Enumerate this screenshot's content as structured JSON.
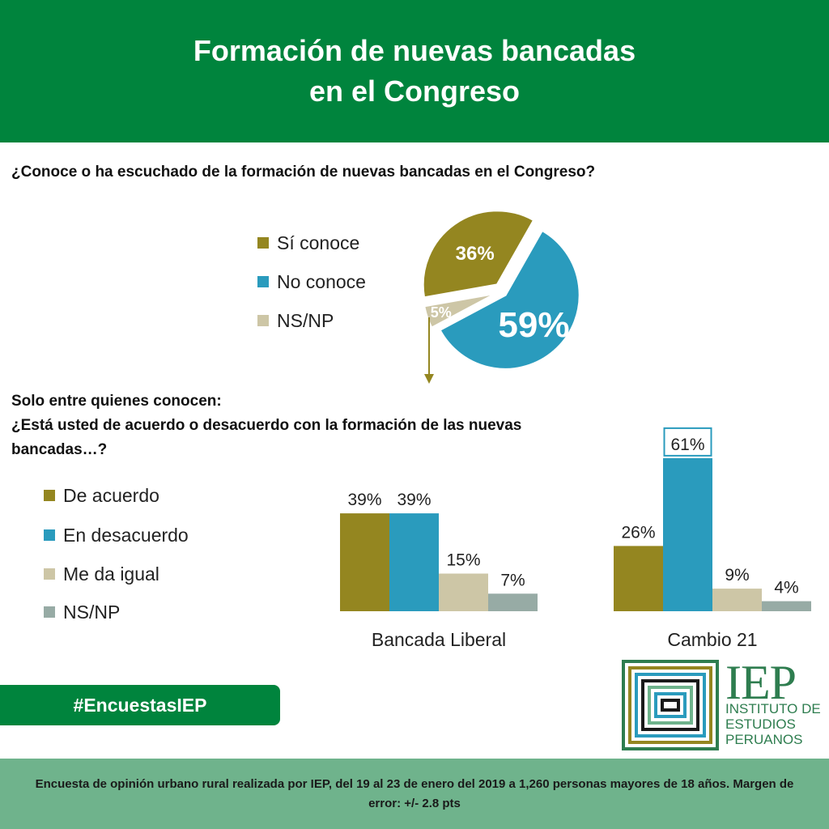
{
  "header": {
    "title_line1": "Formación de nuevas bancadas",
    "title_line2": "en el Congreso"
  },
  "colors": {
    "header_green": "#00843d",
    "olive": "#948620",
    "blue": "#2a9bbd",
    "beige": "#cdc6a6",
    "grey": "#97aba5",
    "footer_green": "#6fb38c"
  },
  "section1": {
    "question": "¿Conoce o ha escuchado de la formación de nuevas bancadas en el Congreso?",
    "legend": [
      {
        "label": "Sí conoce",
        "color": "#948620"
      },
      {
        "label": "No conoce",
        "color": "#2a9bbd"
      },
      {
        "label": "NS/NP",
        "color": "#cdc6a6"
      }
    ]
  },
  "section2": {
    "question_line1": "Solo entre quienes conocen:",
    "question_line2": "¿Está usted de acuerdo o desacuerdo con la formación de las nuevas",
    "question_line3": "bancadas…?",
    "legend": [
      {
        "label": "De acuerdo",
        "color": "#948620"
      },
      {
        "label": "En desacuerdo",
        "color": "#2a9bbd"
      },
      {
        "label": "Me da igual",
        "color": "#cdc6a6"
      },
      {
        "label": "NS/NP",
        "color": "#97aba5"
      }
    ]
  },
  "chart_data": [
    {
      "type": "pie",
      "labels": [
        "Sí conoce",
        "No conoce",
        "NS/NP"
      ],
      "values": [
        36,
        59,
        5
      ],
      "value_labels": [
        "36%",
        "59%",
        "5%"
      ],
      "colors": [
        "#948620",
        "#2a9bbd",
        "#cdc6a6"
      ]
    },
    {
      "type": "bar",
      "categories": [
        "Bancada Liberal",
        "Cambio 21"
      ],
      "series": [
        {
          "name": "De acuerdo",
          "values": [
            39,
            26
          ],
          "color": "#948620"
        },
        {
          "name": "En desacuerdo",
          "values": [
            39,
            61
          ],
          "color": "#2a9bbd"
        },
        {
          "name": "Me da igual",
          "values": [
            15,
            9
          ],
          "color": "#cdc6a6"
        },
        {
          "name": "NS/NP",
          "values": [
            7,
            4
          ],
          "color": "#97aba5"
        }
      ],
      "value_labels": [
        [
          "39%",
          "39%",
          "15%",
          "7%"
        ],
        [
          "26%",
          "61%",
          "9%",
          "4%"
        ]
      ]
    }
  ],
  "hashtag": "#EncuestasIEP",
  "logo": {
    "name": "IEP",
    "line1": "INSTITUTO DE",
    "line2": "ESTUDIOS",
    "line3": "PERUANOS"
  },
  "footer": {
    "text": "Encuesta de opinión urbano rural realizada por IEP, del 19 al 23 de enero del 2019 a 1,260 personas mayores de 18 años. Margen de error: +/- 2.8 pts"
  }
}
